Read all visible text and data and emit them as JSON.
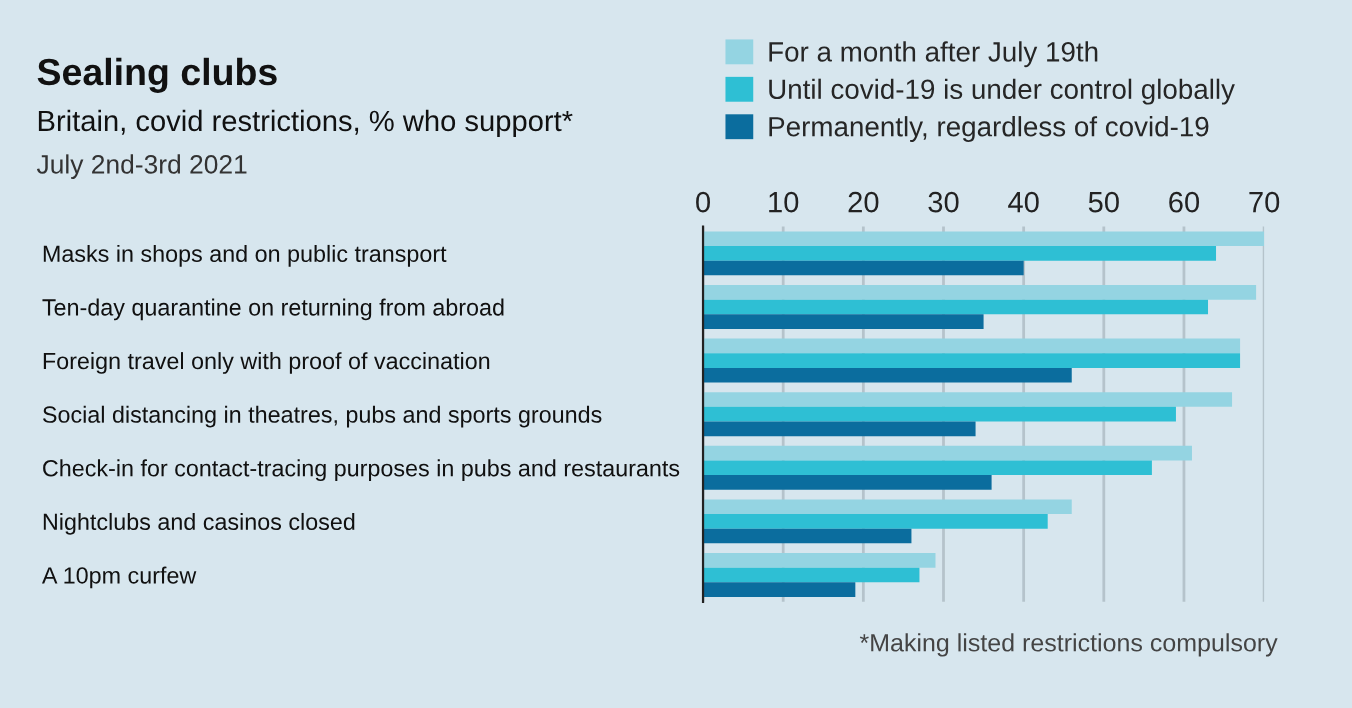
{
  "chart_data": {
    "type": "bar",
    "orientation": "horizontal",
    "title": "Sealing clubs",
    "subtitle": "Britain, covid restrictions, % who support*",
    "categories": [
      "Masks in shops and on public transport",
      "Ten-day quarantine on returning from abroad",
      "Foreign travel only with proof of vaccination",
      "Social distancing in theatres, pubs and sports grounds",
      "Check-in for contact-tracing purposes in pubs and restaurants",
      "Nightclubs and casinos closed",
      "A 10pm curfew"
    ],
    "series": [
      {
        "name": "For a month after July 19th",
        "color": "#94d4e2",
        "values": [
          70,
          69,
          67,
          66,
          61,
          46,
          29
        ]
      },
      {
        "name": "Until covid-19 is under control globally",
        "color": "#2ebfd4",
        "values": [
          64,
          63,
          67,
          59,
          56,
          43,
          27
        ]
      },
      {
        "name": "Permanently, regardless of covid-19",
        "color": "#0b6d9e",
        "values": [
          40,
          35,
          46,
          34,
          36,
          26,
          19
        ]
      }
    ],
    "xlim": [
      0,
      70
    ],
    "xticks": [
      0,
      10,
      20,
      30,
      40,
      50,
      60,
      70
    ],
    "grid": "x",
    "legend": "top",
    "annotations": [
      "July 2nd-3rd 2021",
      "*Making listed restrictions compulsory"
    ]
  }
}
